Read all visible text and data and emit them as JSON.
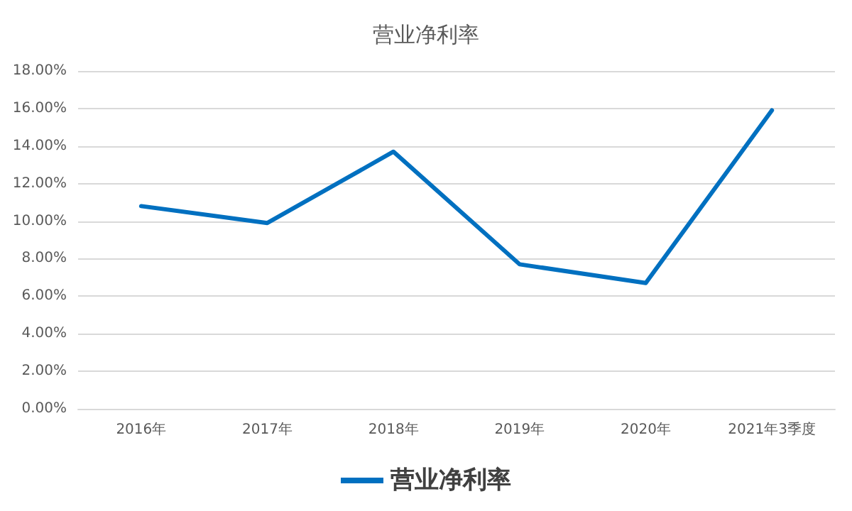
{
  "chart_data": {
    "type": "line",
    "title": "营业净利率",
    "categories": [
      "2016年",
      "2017年",
      "2018年",
      "2019年",
      "2020年",
      "2021年3季度"
    ],
    "series": [
      {
        "name": "营业净利率",
        "color": "#0070c0",
        "values": [
          10.8,
          9.9,
          13.7,
          7.7,
          6.7,
          15.9
        ]
      }
    ],
    "ylim": [
      0,
      18
    ],
    "yticks": [
      {
        "value": 0,
        "label": "0.00%"
      },
      {
        "value": 2,
        "label": "2.00%"
      },
      {
        "value": 4,
        "label": "4.00%"
      },
      {
        "value": 6,
        "label": "6.00%"
      },
      {
        "value": 8,
        "label": "8.00%"
      },
      {
        "value": 10,
        "label": "10.00%"
      },
      {
        "value": 12,
        "label": "12.00%"
      },
      {
        "value": 14,
        "label": "14.00%"
      },
      {
        "value": 16,
        "label": "16.00%"
      },
      {
        "value": 18,
        "label": "18.00%"
      }
    ],
    "grid": "y",
    "legend": "bottom",
    "marker": "none",
    "line_style": "solid"
  }
}
